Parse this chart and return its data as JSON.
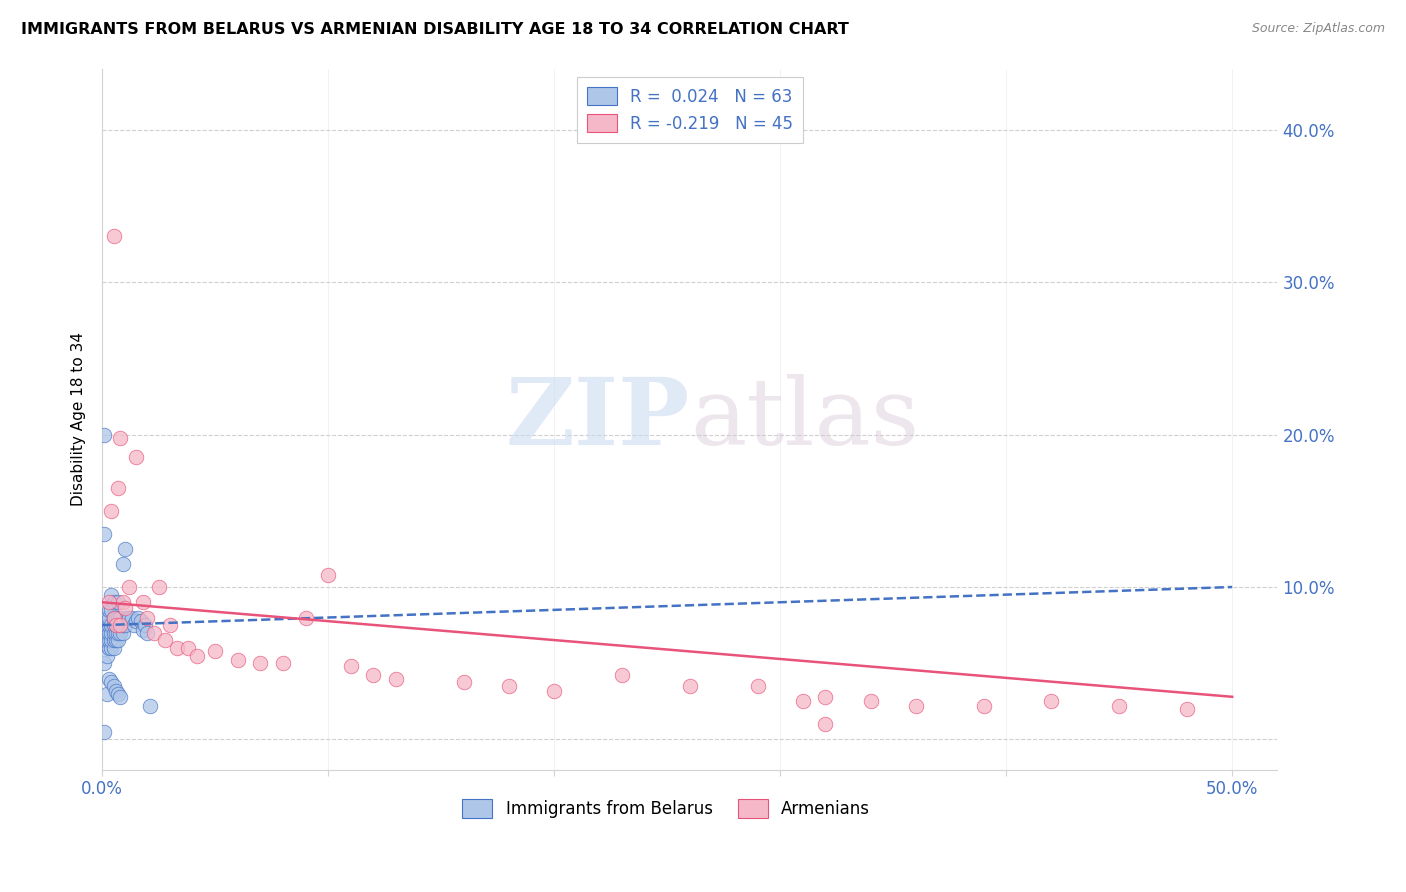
{
  "title": "IMMIGRANTS FROM BELARUS VS ARMENIAN DISABILITY AGE 18 TO 34 CORRELATION CHART",
  "source": "Source: ZipAtlas.com",
  "ylabel": "Disability Age 18 to 34",
  "xlim": [
    0.0,
    0.52
  ],
  "ylim": [
    -0.02,
    0.44
  ],
  "yticks": [
    0.0,
    0.1,
    0.2,
    0.3,
    0.4
  ],
  "ytick_labels": [
    "",
    "10.0%",
    "20.0%",
    "30.0%",
    "40.0%"
  ],
  "xticks": [
    0.0,
    0.1,
    0.2,
    0.3,
    0.4,
    0.5
  ],
  "xtick_labels": [
    "0.0%",
    "",
    "",
    "",
    "",
    "50.0%"
  ],
  "watermark_zip": "ZIP",
  "watermark_atlas": "atlas",
  "legend_blue_label": "Immigrants from Belarus",
  "legend_pink_label": "Armenians",
  "blue_color": "#aec6e8",
  "blue_edge_color": "#4472c4",
  "pink_color": "#f5b8c8",
  "pink_edge_color": "#e8537a",
  "blue_line_color": "#4472c4",
  "pink_line_color": "#e8537a",
  "axis_color": "#4472c4",
  "blue_scatter_x": [
    0.001,
    0.001,
    0.001,
    0.002,
    0.002,
    0.002,
    0.002,
    0.002,
    0.003,
    0.003,
    0.003,
    0.003,
    0.003,
    0.003,
    0.004,
    0.004,
    0.004,
    0.004,
    0.004,
    0.004,
    0.005,
    0.005,
    0.005,
    0.005,
    0.005,
    0.005,
    0.006,
    0.006,
    0.006,
    0.006,
    0.007,
    0.007,
    0.007,
    0.007,
    0.007,
    0.008,
    0.008,
    0.008,
    0.009,
    0.009,
    0.009,
    0.01,
    0.01,
    0.011,
    0.012,
    0.013,
    0.014,
    0.015,
    0.016,
    0.017,
    0.018,
    0.019,
    0.02,
    0.021,
    0.002,
    0.003,
    0.004,
    0.005,
    0.006,
    0.007,
    0.008,
    0.001,
    0.001
  ],
  "blue_scatter_y": [
    0.005,
    0.05,
    0.065,
    0.055,
    0.065,
    0.07,
    0.075,
    0.08,
    0.06,
    0.065,
    0.07,
    0.075,
    0.08,
    0.085,
    0.06,
    0.065,
    0.07,
    0.075,
    0.085,
    0.095,
    0.06,
    0.065,
    0.07,
    0.075,
    0.08,
    0.09,
    0.065,
    0.07,
    0.075,
    0.08,
    0.065,
    0.07,
    0.075,
    0.08,
    0.09,
    0.07,
    0.075,
    0.08,
    0.07,
    0.075,
    0.115,
    0.075,
    0.125,
    0.08,
    0.08,
    0.08,
    0.075,
    0.078,
    0.08,
    0.078,
    0.072,
    0.075,
    0.07,
    0.022,
    0.03,
    0.04,
    0.038,
    0.035,
    0.032,
    0.03,
    0.028,
    0.2,
    0.135
  ],
  "pink_scatter_x": [
    0.003,
    0.004,
    0.005,
    0.006,
    0.007,
    0.008,
    0.009,
    0.01,
    0.012,
    0.015,
    0.018,
    0.02,
    0.023,
    0.025,
    0.028,
    0.03,
    0.033,
    0.038,
    0.042,
    0.05,
    0.06,
    0.07,
    0.08,
    0.09,
    0.1,
    0.11,
    0.12,
    0.13,
    0.16,
    0.18,
    0.2,
    0.23,
    0.26,
    0.29,
    0.31,
    0.32,
    0.34,
    0.36,
    0.39,
    0.42,
    0.45,
    0.48,
    0.005,
    0.008,
    0.32
  ],
  "pink_scatter_y": [
    0.09,
    0.15,
    0.08,
    0.075,
    0.165,
    0.075,
    0.09,
    0.086,
    0.1,
    0.185,
    0.09,
    0.08,
    0.07,
    0.1,
    0.065,
    0.075,
    0.06,
    0.06,
    0.055,
    0.058,
    0.052,
    0.05,
    0.05,
    0.08,
    0.108,
    0.048,
    0.042,
    0.04,
    0.038,
    0.035,
    0.032,
    0.042,
    0.035,
    0.035,
    0.025,
    0.028,
    0.025,
    0.022,
    0.022,
    0.025,
    0.022,
    0.02,
    0.33,
    0.198,
    0.01
  ],
  "blue_trend_x": [
    0.0,
    0.5
  ],
  "blue_trend_y": [
    0.075,
    0.1
  ],
  "pink_trend_x": [
    0.0,
    0.5
  ],
  "pink_trend_y": [
    0.09,
    0.028
  ]
}
